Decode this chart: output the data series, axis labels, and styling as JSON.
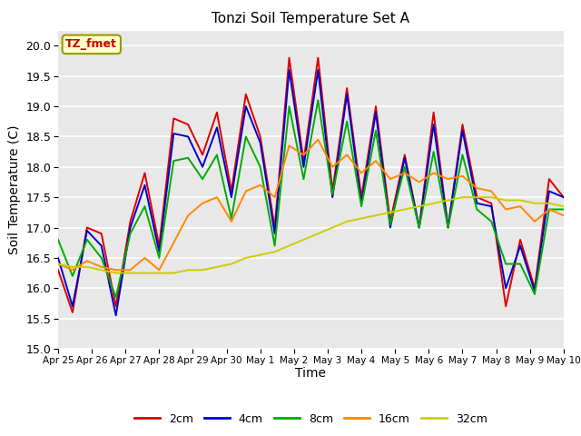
{
  "title": "Tonzi Soil Temperature Set A",
  "xlabel": "Time",
  "ylabel": "Soil Temperature (C)",
  "annotation": "TZ_fmet",
  "ylim": [
    15.0,
    20.25
  ],
  "yticks": [
    15.0,
    15.5,
    16.0,
    16.5,
    17.0,
    17.5,
    18.0,
    18.5,
    19.0,
    19.5,
    20.0
  ],
  "bg_color": "#e8e8e8",
  "fig_bg": "#ffffff",
  "legend_labels": [
    "2cm",
    "4cm",
    "8cm",
    "16cm",
    "32cm"
  ],
  "series_colors": [
    "#dd0000",
    "#0000cc",
    "#00aa00",
    "#ff8800",
    "#cccc00"
  ],
  "x_tick_labels": [
    "Apr 25",
    "Apr 26",
    "Apr 27",
    "Apr 28",
    "Apr 29",
    "Apr 30",
    "May 1",
    "May 2",
    "May 3",
    "May 4",
    "May 5",
    "May 6",
    "May 7",
    "May 8",
    "May 9",
    "May 10"
  ],
  "total_days": 15.0,
  "series_2cm": [
    16.3,
    15.6,
    17.0,
    16.9,
    15.7,
    17.1,
    17.9,
    16.7,
    18.8,
    18.7,
    18.2,
    18.9,
    17.6,
    19.2,
    18.5,
    17.0,
    19.8,
    18.1,
    19.8,
    17.6,
    19.3,
    17.5,
    19.0,
    17.1,
    18.2,
    17.0,
    18.9,
    17.0,
    18.7,
    17.5,
    17.4,
    15.7,
    16.8,
    16.0,
    17.8,
    17.5
  ],
  "series_4cm": [
    16.5,
    15.7,
    16.95,
    16.7,
    15.55,
    17.0,
    17.7,
    16.6,
    18.55,
    18.5,
    18.0,
    18.65,
    17.5,
    19.0,
    18.4,
    16.9,
    19.6,
    18.0,
    19.6,
    17.5,
    19.2,
    17.4,
    18.9,
    17.0,
    18.15,
    17.0,
    18.7,
    17.0,
    18.6,
    17.4,
    17.35,
    16.0,
    16.7,
    15.95,
    17.6,
    17.5
  ],
  "series_8cm": [
    16.8,
    16.2,
    16.8,
    16.5,
    15.85,
    16.9,
    17.35,
    16.5,
    18.1,
    18.15,
    17.8,
    18.2,
    17.15,
    18.5,
    18.0,
    16.7,
    19.0,
    17.8,
    19.1,
    17.55,
    18.75,
    17.35,
    18.6,
    17.05,
    18.0,
    17.0,
    18.25,
    17.0,
    18.2,
    17.3,
    17.1,
    16.4,
    16.4,
    15.9,
    17.3,
    17.3
  ],
  "series_16cm": [
    16.4,
    16.3,
    16.45,
    16.35,
    16.3,
    16.3,
    16.5,
    16.3,
    16.75,
    17.2,
    17.4,
    17.5,
    17.1,
    17.6,
    17.7,
    17.5,
    18.35,
    18.2,
    18.45,
    18.0,
    18.2,
    17.9,
    18.1,
    17.8,
    17.9,
    17.75,
    17.9,
    17.8,
    17.85,
    17.65,
    17.6,
    17.3,
    17.35,
    17.1,
    17.3,
    17.2
  ],
  "series_32cm": [
    16.4,
    16.35,
    16.35,
    16.3,
    16.25,
    16.25,
    16.25,
    16.25,
    16.25,
    16.3,
    16.3,
    16.35,
    16.4,
    16.5,
    16.55,
    16.6,
    16.7,
    16.8,
    16.9,
    17.0,
    17.1,
    17.15,
    17.2,
    17.25,
    17.3,
    17.35,
    17.4,
    17.45,
    17.5,
    17.5,
    17.5,
    17.45,
    17.45,
    17.4,
    17.4,
    17.35
  ]
}
